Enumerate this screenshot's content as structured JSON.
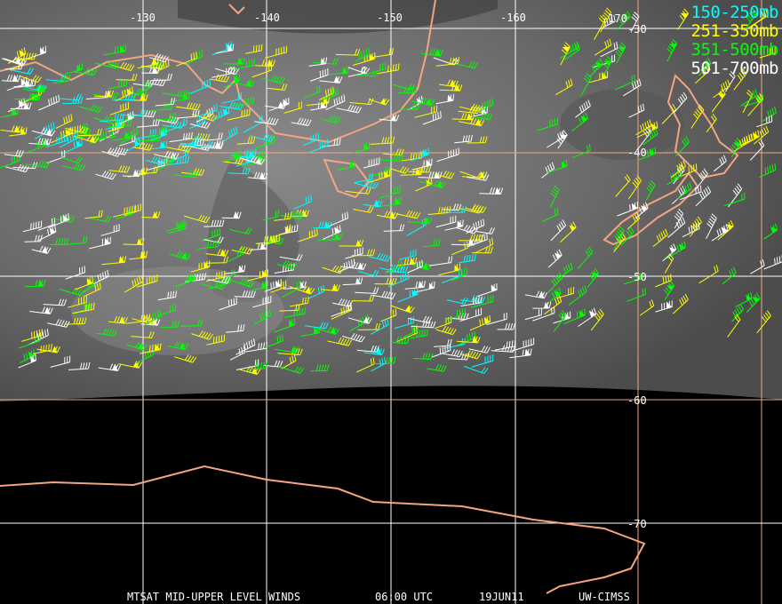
{
  "caption": {
    "title": "MTSAT MID-UPPER LEVEL WINDS",
    "time": "06:00 UTC",
    "date": "19JUN11",
    "source": "UW-CIMSS"
  },
  "longitude_labels": [
    "-130",
    "-140",
    "-150",
    "-160",
    "-170"
  ],
  "latitude_labels": [
    "-30",
    "-40",
    "-50",
    "-60",
    "-70"
  ],
  "legend": [
    {
      "label": "150-250mb",
      "color": "#00ffff"
    },
    {
      "label": "251-350mb",
      "color": "#ffff00"
    },
    {
      "label": "351-500mb",
      "color": "#00ff00"
    },
    {
      "label": "501-700mb",
      "color": "#ffffff"
    }
  ],
  "colors": {
    "coastline": "#f4a582",
    "grid_white": "#ffffff",
    "grid_orange": "#f4a582"
  }
}
